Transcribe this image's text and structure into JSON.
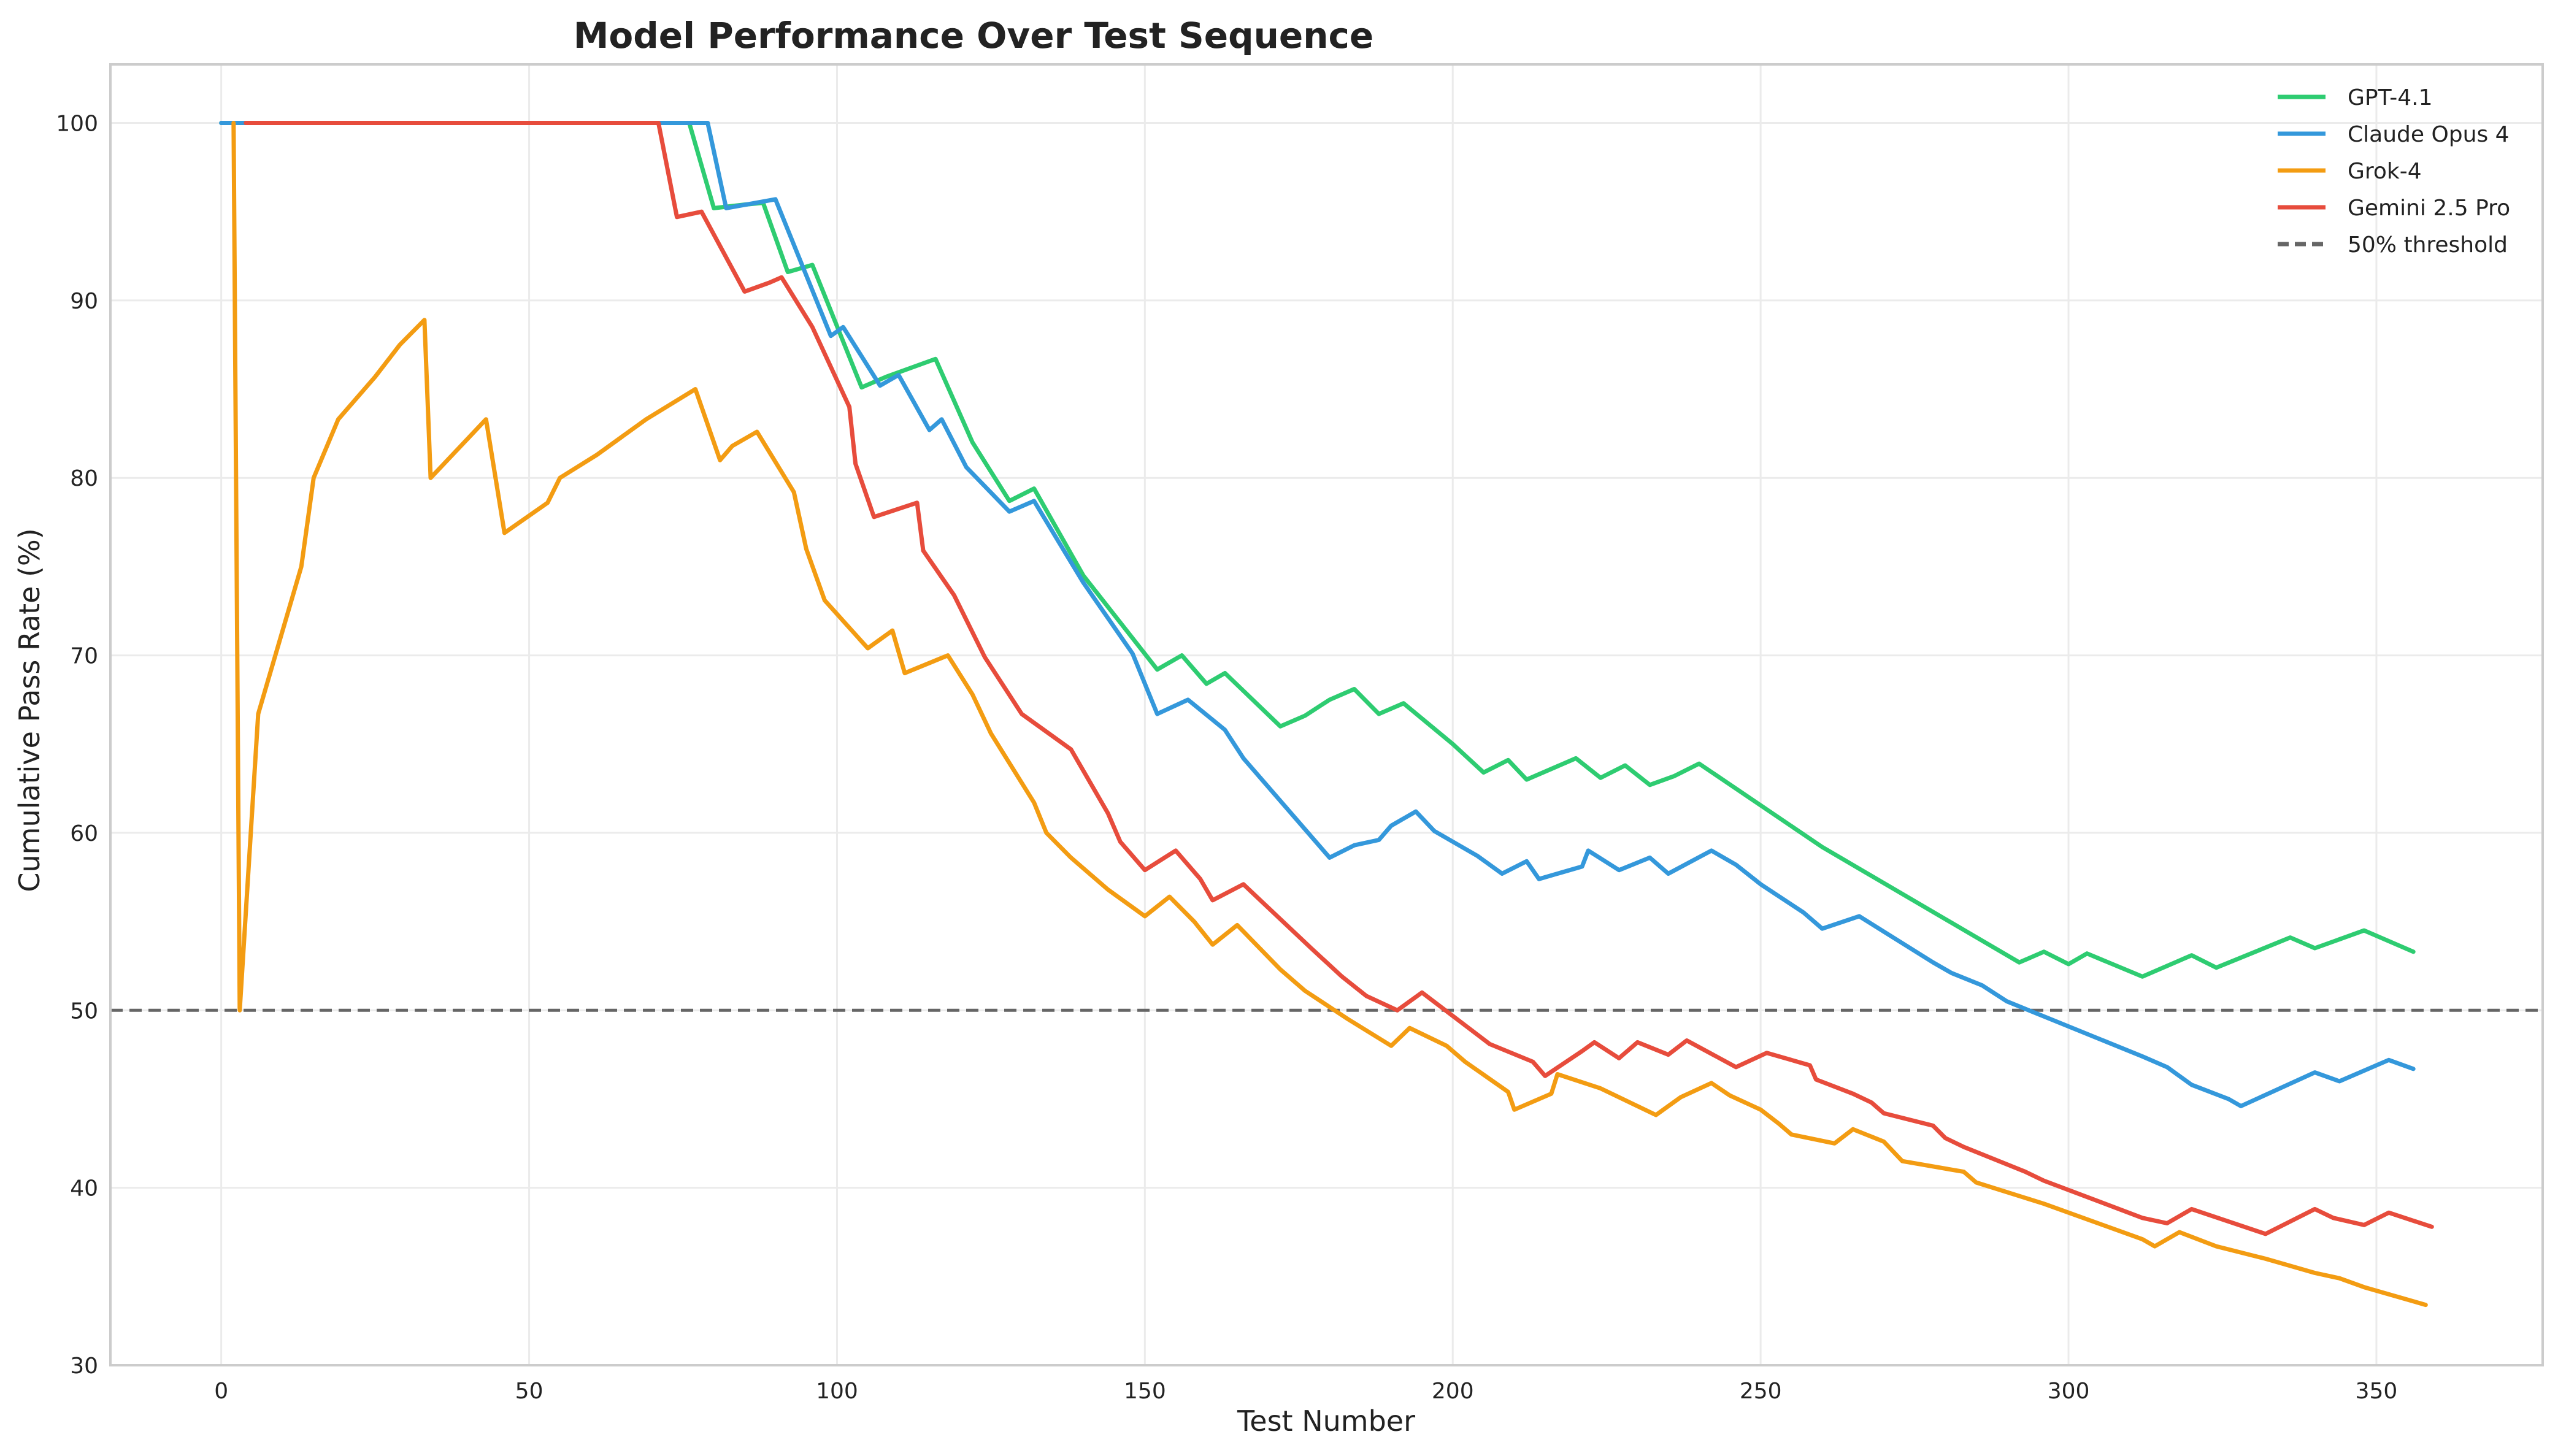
{
  "chart_data": {
    "type": "line",
    "title": "Model Performance Over Test Sequence",
    "xlabel": "Test Number",
    "ylabel": "Cumulative Pass Rate (%)",
    "xlim": [
      -18,
      377
    ],
    "ylim": [
      30,
      103.3
    ],
    "xticks": [
      0,
      50,
      100,
      150,
      200,
      250,
      300,
      350
    ],
    "yticks": [
      30,
      40,
      50,
      60,
      70,
      80,
      90,
      100
    ],
    "grid": true,
    "legend_position": "top-right",
    "threshold": {
      "label": "50% threshold",
      "y": 50,
      "color": "#666666",
      "style": "dashed"
    },
    "series": [
      {
        "name": "GPT-4.1",
        "color": "#2ecc71",
        "points": [
          [
            0,
            100
          ],
          [
            76,
            100
          ],
          [
            80,
            95.2
          ],
          [
            85,
            95.4
          ],
          [
            88,
            95.5
          ],
          [
            92,
            91.6
          ],
          [
            96,
            92
          ],
          [
            104,
            85.1
          ],
          [
            108,
            85.7
          ],
          [
            116,
            86.7
          ],
          [
            122,
            82
          ],
          [
            128,
            78.7
          ],
          [
            132,
            79.4
          ],
          [
            140,
            74.5
          ],
          [
            152,
            69.2
          ],
          [
            156,
            70
          ],
          [
            160,
            68.4
          ],
          [
            163,
            69
          ],
          [
            172,
            66
          ],
          [
            176,
            66.6
          ],
          [
            180,
            67.5
          ],
          [
            184,
            68.1
          ],
          [
            188,
            66.7
          ],
          [
            192,
            67.3
          ],
          [
            200,
            65
          ],
          [
            205,
            63.4
          ],
          [
            209,
            64.1
          ],
          [
            212,
            63
          ],
          [
            220,
            64.2
          ],
          [
            224,
            63.1
          ],
          [
            228,
            63.8
          ],
          [
            232,
            62.7
          ],
          [
            236,
            63.2
          ],
          [
            240,
            63.9
          ],
          [
            260,
            59.2
          ],
          [
            292,
            52.7
          ],
          [
            296,
            53.3
          ],
          [
            300,
            52.6
          ],
          [
            303,
            53.2
          ],
          [
            312,
            51.9
          ],
          [
            320,
            53.1
          ],
          [
            324,
            52.4
          ],
          [
            336,
            54.1
          ],
          [
            340,
            53.5
          ],
          [
            348,
            54.5
          ],
          [
            356,
            53.3
          ]
        ]
      },
      {
        "name": "Claude Opus 4",
        "color": "#3498db",
        "points": [
          [
            0,
            100
          ],
          [
            79,
            100
          ],
          [
            82,
            95.2
          ],
          [
            90,
            95.7
          ],
          [
            99,
            88
          ],
          [
            101,
            88.5
          ],
          [
            107,
            85.2
          ],
          [
            110,
            85.8
          ],
          [
            115,
            82.7
          ],
          [
            117,
            83.3
          ],
          [
            121,
            80.6
          ],
          [
            128,
            78.1
          ],
          [
            132,
            78.7
          ],
          [
            136,
            76.4
          ],
          [
            140,
            74.1
          ],
          [
            148,
            70.1
          ],
          [
            152,
            66.7
          ],
          [
            157,
            67.5
          ],
          [
            163,
            65.8
          ],
          [
            166,
            64.2
          ],
          [
            180,
            58.6
          ],
          [
            184,
            59.3
          ],
          [
            188,
            59.6
          ],
          [
            190,
            60.4
          ],
          [
            194,
            61.2
          ],
          [
            197,
            60.1
          ],
          [
            200,
            59.5
          ],
          [
            204,
            58.7
          ],
          [
            208,
            57.7
          ],
          [
            212,
            58.4
          ],
          [
            214,
            57.4
          ],
          [
            221,
            58.1
          ],
          [
            222,
            59
          ],
          [
            227,
            57.9
          ],
          [
            232,
            58.6
          ],
          [
            235,
            57.7
          ],
          [
            242,
            59
          ],
          [
            246,
            58.2
          ],
          [
            250,
            57.1
          ],
          [
            257,
            55.5
          ],
          [
            260,
            54.6
          ],
          [
            266,
            55.3
          ],
          [
            278,
            52.7
          ],
          [
            281,
            52.1
          ],
          [
            286,
            51.4
          ],
          [
            290,
            50.5
          ],
          [
            312,
            47.4
          ],
          [
            316,
            46.8
          ],
          [
            320,
            45.8
          ],
          [
            326,
            45
          ],
          [
            328,
            44.6
          ],
          [
            340,
            46.5
          ],
          [
            344,
            46
          ],
          [
            352,
            47.2
          ],
          [
            356,
            46.7
          ]
        ]
      },
      {
        "name": "Grok-4",
        "color": "#f39c12",
        "points": [
          [
            2,
            100
          ],
          [
            3,
            50
          ],
          [
            6,
            66.7
          ],
          [
            13,
            75
          ],
          [
            15,
            80
          ],
          [
            19,
            83.3
          ],
          [
            25,
            85.7
          ],
          [
            29,
            87.5
          ],
          [
            33,
            88.9
          ],
          [
            34,
            80
          ],
          [
            43,
            83.3
          ],
          [
            46,
            76.9
          ],
          [
            53,
            78.6
          ],
          [
            55,
            80
          ],
          [
            61,
            81.3
          ],
          [
            69,
            83.3
          ],
          [
            77,
            85
          ],
          [
            81,
            81
          ],
          [
            83,
            81.8
          ],
          [
            87,
            82.6
          ],
          [
            93,
            79.2
          ],
          [
            95,
            76
          ],
          [
            98,
            73.1
          ],
          [
            105,
            70.4
          ],
          [
            109,
            71.4
          ],
          [
            111,
            69
          ],
          [
            118,
            70
          ],
          [
            122,
            67.8
          ],
          [
            125,
            65.6
          ],
          [
            132,
            61.7
          ],
          [
            134,
            60
          ],
          [
            138,
            58.6
          ],
          [
            144,
            56.8
          ],
          [
            150,
            55.3
          ],
          [
            154,
            56.4
          ],
          [
            158,
            55
          ],
          [
            161,
            53.7
          ],
          [
            165,
            54.8
          ],
          [
            172,
            52.3
          ],
          [
            176,
            51.1
          ],
          [
            183,
            49.5
          ],
          [
            190,
            48
          ],
          [
            193,
            49
          ],
          [
            199,
            48
          ],
          [
            202,
            47.1
          ],
          [
            209,
            45.4
          ],
          [
            210,
            44.4
          ],
          [
            216,
            45.3
          ],
          [
            217,
            46.4
          ],
          [
            224,
            45.6
          ],
          [
            233,
            44.1
          ],
          [
            237,
            45.1
          ],
          [
            242,
            45.9
          ],
          [
            245,
            45.2
          ],
          [
            250,
            44.4
          ],
          [
            253,
            43.6
          ],
          [
            255,
            43
          ],
          [
            262,
            42.5
          ],
          [
            265,
            43.3
          ],
          [
            270,
            42.6
          ],
          [
            273,
            41.5
          ],
          [
            283,
            40.9
          ],
          [
            285,
            40.3
          ],
          [
            296,
            39.1
          ],
          [
            312,
            37.1
          ],
          [
            314,
            36.7
          ],
          [
            318,
            37.5
          ],
          [
            324,
            36.7
          ],
          [
            332,
            36
          ],
          [
            340,
            35.2
          ],
          [
            344,
            34.9
          ],
          [
            348,
            34.4
          ],
          [
            358,
            33.4
          ]
        ]
      },
      {
        "name": "Gemini 2.5 Pro",
        "color": "#e74c3c",
        "points": [
          [
            4,
            100
          ],
          [
            71,
            100
          ],
          [
            74,
            94.7
          ],
          [
            78,
            95
          ],
          [
            85,
            90.5
          ],
          [
            89,
            91
          ],
          [
            91,
            91.3
          ],
          [
            96,
            88.5
          ],
          [
            102,
            84
          ],
          [
            103,
            80.8
          ],
          [
            106,
            77.8
          ],
          [
            113,
            78.6
          ],
          [
            114,
            75.9
          ],
          [
            119,
            73.4
          ],
          [
            124,
            69.9
          ],
          [
            130,
            66.7
          ],
          [
            138,
            64.7
          ],
          [
            144,
            61.1
          ],
          [
            146,
            59.5
          ],
          [
            150,
            57.9
          ],
          [
            155,
            59
          ],
          [
            159,
            57.4
          ],
          [
            161,
            56.2
          ],
          [
            166,
            57.1
          ],
          [
            177,
            53.5
          ],
          [
            182,
            51.9
          ],
          [
            186,
            50.8
          ],
          [
            191,
            50
          ],
          [
            195,
            51
          ],
          [
            206,
            48.1
          ],
          [
            213,
            47.1
          ],
          [
            215,
            46.3
          ],
          [
            221,
            47.7
          ],
          [
            223,
            48.2
          ],
          [
            227,
            47.3
          ],
          [
            230,
            48.2
          ],
          [
            235,
            47.5
          ],
          [
            238,
            48.3
          ],
          [
            246,
            46.8
          ],
          [
            251,
            47.6
          ],
          [
            256,
            47.1
          ],
          [
            258,
            46.9
          ],
          [
            259,
            46.1
          ],
          [
            265,
            45.3
          ],
          [
            268,
            44.8
          ],
          [
            270,
            44.2
          ],
          [
            278,
            43.5
          ],
          [
            280,
            42.8
          ],
          [
            283,
            42.3
          ],
          [
            293,
            40.9
          ],
          [
            296,
            40.4
          ],
          [
            312,
            38.3
          ],
          [
            316,
            38
          ],
          [
            320,
            38.8
          ],
          [
            332,
            37.4
          ],
          [
            340,
            38.8
          ],
          [
            343,
            38.3
          ],
          [
            348,
            37.9
          ],
          [
            352,
            38.6
          ],
          [
            359,
            37.8
          ]
        ]
      }
    ]
  }
}
